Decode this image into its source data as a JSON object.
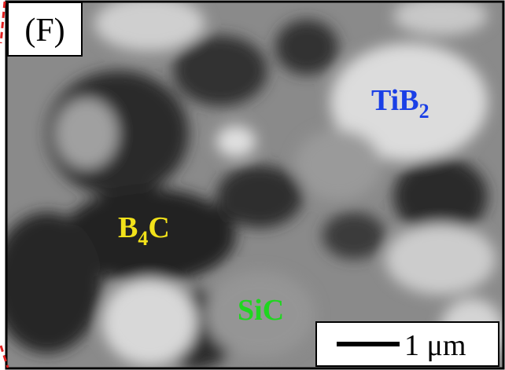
{
  "panel_label": "(F)",
  "phases": {
    "tib2": {
      "text": "TiB",
      "subscript": "2"
    },
    "b4c": {
      "text": "B",
      "subscript": "4",
      "suffix": "C"
    },
    "sic": {
      "text": "SiC"
    }
  },
  "scale_bar": "1 μm"
}
